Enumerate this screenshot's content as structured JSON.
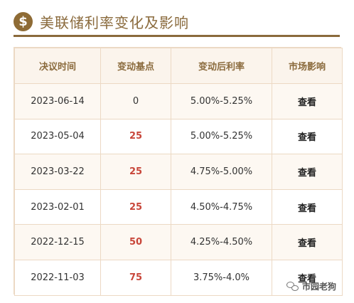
{
  "header": {
    "title": "美联储利率变化及影响",
    "icon": "dollar-icon",
    "icon_glyph": "$"
  },
  "table": {
    "columns": [
      "决议时间",
      "变动基点",
      "变动后利率",
      "市场影响"
    ],
    "rows": [
      {
        "date": "2023-06-14",
        "bp": "0",
        "rate": "5.00%-5.25%",
        "impact": "查看"
      },
      {
        "date": "2023-05-04",
        "bp": "25",
        "rate": "5.00%-5.25%",
        "impact": "查看"
      },
      {
        "date": "2023-03-22",
        "bp": "25",
        "rate": "4.75%-5.00%",
        "impact": "查看"
      },
      {
        "date": "2023-02-01",
        "bp": "25",
        "rate": "4.50%-4.75%",
        "impact": "查看"
      },
      {
        "date": "2022-12-15",
        "bp": "50",
        "rate": "4.25%-4.50%",
        "impact": "查看"
      },
      {
        "date": "2022-11-03",
        "bp": "75",
        "rate": "3.75%-4.0%",
        "impact": "查看"
      }
    ]
  },
  "watermark": {
    "text": "市园老狗",
    "icon": "wechat-icon"
  },
  "colors": {
    "accent": "#8a6a3c",
    "highlight": "#c8463a"
  }
}
